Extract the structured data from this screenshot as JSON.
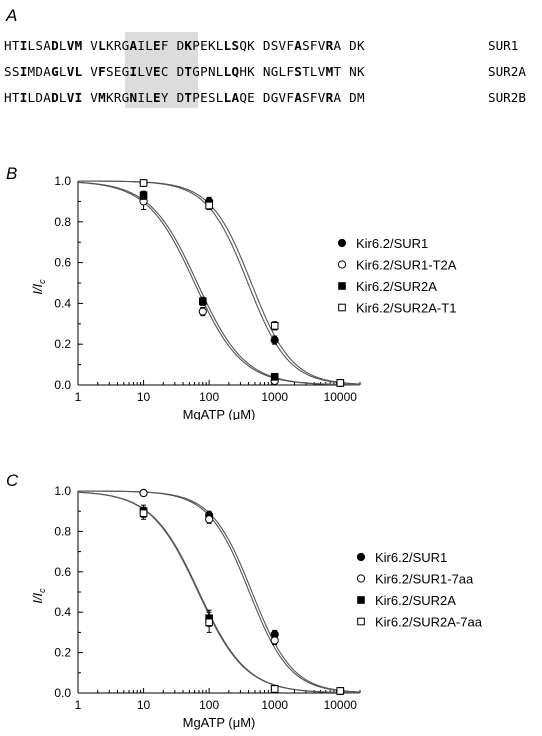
{
  "panels": {
    "a": {
      "label": "A"
    },
    "b": {
      "label": "B"
    },
    "c": {
      "label": "C"
    }
  },
  "sequences": [
    {
      "name": "SUR1",
      "text": "HTILSADLVM VLKRGAILEF DKPEKLLSQK DSVFASFVRA DK",
      "bold": [
        2,
        6,
        8,
        9,
        11,
        15,
        18,
        21,
        26,
        27,
        34,
        38
      ]
    },
    {
      "name": "SUR2A",
      "text": "SSIMDAGLVL VFSEGILVEC DTGPNLLQHK NGLFSTLVMT NK",
      "bold": [
        2,
        6,
        8,
        9,
        11,
        15,
        18,
        21,
        26,
        27,
        34,
        38
      ]
    },
    {
      "name": "SUR2B",
      "text": "HTILDADLVI VMKRGNILEY DTPESLLAQE DGVFASFVRA DM",
      "bold": [
        2,
        6,
        8,
        9,
        11,
        15,
        18,
        21,
        26,
        27,
        34,
        38
      ]
    }
  ],
  "chart_data": [
    {
      "type": "scatter",
      "panel": "B",
      "xlabel": "MgATP (μM)",
      "ylabel": "I/Ic",
      "xscale": "log",
      "xlim": [
        1,
        20000
      ],
      "ylim": [
        0,
        1.0
      ],
      "xticks": [
        1,
        10,
        100,
        1000,
        10000
      ],
      "xtick_labels": [
        "1",
        "10",
        "100",
        "1000",
        "10000"
      ],
      "yticks": [
        0.0,
        0.2,
        0.4,
        0.6,
        0.8,
        1.0
      ],
      "ytick_labels": [
        "0.0",
        "0.2",
        "0.4",
        "0.6",
        "0.8",
        "1.0"
      ],
      "legend_position": "right",
      "series": [
        {
          "name": "Kir6.2/SUR1",
          "marker": "filled-circle",
          "x": [
            10,
            100,
            1000,
            10000
          ],
          "y": [
            0.99,
            0.9,
            0.22,
            0.01
          ],
          "err": [
            0.01,
            0.02,
            0.02,
            0.0
          ],
          "fit": {
            "ic50": 390,
            "hill": 1.4
          }
        },
        {
          "name": "Kir6.2/SUR1-T2A",
          "marker": "open-circle",
          "x": [
            10,
            80,
            1000,
            10000
          ],
          "y": [
            0.9,
            0.36,
            0.02,
            0.01
          ],
          "err": [
            0.04,
            0.02,
            0.0,
            0.0
          ],
          "fit": {
            "ic50": 60,
            "hill": 1.2
          }
        },
        {
          "name": "Kir6.2/SUR2A",
          "marker": "filled-square",
          "x": [
            10,
            80,
            1000,
            10000
          ],
          "y": [
            0.93,
            0.41,
            0.04,
            0.01
          ],
          "err": [
            0.02,
            0.02,
            0.0,
            0.0
          ],
          "fit": {
            "ic50": 66,
            "hill": 1.2
          }
        },
        {
          "name": "Kir6.2/SUR2A-T1",
          "marker": "open-square",
          "x": [
            10,
            100,
            1000,
            10000
          ],
          "y": [
            0.99,
            0.88,
            0.29,
            0.01
          ],
          "err": [
            0.01,
            0.02,
            0.02,
            0.0
          ],
          "fit": {
            "ic50": 440,
            "hill": 1.4
          }
        }
      ]
    },
    {
      "type": "scatter",
      "panel": "C",
      "xlabel": "MgATP (μM)",
      "ylabel": "I/Ic",
      "xscale": "log",
      "xlim": [
        1,
        20000
      ],
      "ylim": [
        0,
        1.0
      ],
      "xticks": [
        1,
        10,
        100,
        1000,
        10000
      ],
      "xtick_labels": [
        "1",
        "10",
        "100",
        "1000",
        "10000"
      ],
      "yticks": [
        0.0,
        0.2,
        0.4,
        0.6,
        0.8,
        1.0
      ],
      "ytick_labels": [
        "0.0",
        "0.2",
        "0.4",
        "0.6",
        "0.8",
        "1.0"
      ],
      "legend_position": "right",
      "series": [
        {
          "name": "Kir6.2/SUR1",
          "marker": "filled-circle",
          "x": [
            10,
            100,
            1000,
            10000
          ],
          "y": [
            0.99,
            0.88,
            0.29,
            0.01
          ],
          "err": [
            0.01,
            0.02,
            0.02,
            0.0
          ],
          "fit": {
            "ic50": 450,
            "hill": 1.4
          }
        },
        {
          "name": "Kir6.2/SUR1-7aa",
          "marker": "open-circle",
          "x": [
            10,
            100,
            1000,
            10000
          ],
          "y": [
            0.99,
            0.86,
            0.26,
            0.01
          ],
          "err": [
            0.01,
            0.02,
            0.02,
            0.0
          ],
          "fit": {
            "ic50": 410,
            "hill": 1.4
          }
        },
        {
          "name": "Kir6.2/SUR2A",
          "marker": "filled-square",
          "x": [
            10,
            100,
            1000,
            10000
          ],
          "y": [
            0.9,
            0.37,
            0.02,
            0.01
          ],
          "err": [
            0.03,
            0.04,
            0.0,
            0.0
          ],
          "fit": {
            "ic50": 70,
            "hill": 1.2
          }
        },
        {
          "name": "Kir6.2/SUR2A-7aa",
          "marker": "open-square",
          "x": [
            10,
            100,
            1000,
            10000
          ],
          "y": [
            0.89,
            0.35,
            0.02,
            0.01
          ],
          "err": [
            0.03,
            0.05,
            0.0,
            0.0
          ],
          "fit": {
            "ic50": 68,
            "hill": 1.2
          }
        }
      ]
    }
  ]
}
